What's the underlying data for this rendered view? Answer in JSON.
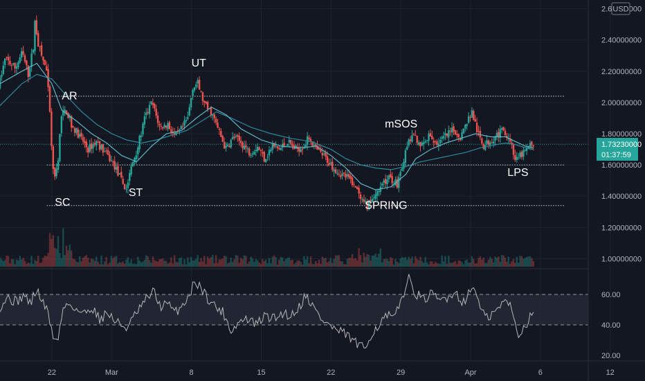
{
  "chart_data": {
    "type": "candlestick",
    "currency": "USD",
    "price_axis": {
      "ticks": [
        "2.60000000",
        "2.40000000",
        "2.20000000",
        "2.00000000",
        "1.80000000",
        "1.60000000",
        "1.40000000",
        "1.20000000",
        "1.00000000"
      ],
      "range": [
        0.98,
        2.62
      ],
      "last_price": "1.73230000",
      "countdown": "01:37:59"
    },
    "time_axis": {
      "ticks": [
        "22",
        "Mar",
        "8",
        "15",
        "22",
        "29",
        "Apr",
        "6",
        "12"
      ],
      "range_days": [
        -3.2,
        55.8
      ],
      "tick_days": [
        2,
        8,
        16,
        23,
        30,
        37,
        44,
        51,
        58
      ]
    },
    "reference_lines": [
      2.04,
      1.6,
      1.34
    ],
    "wyckoff_labels": [
      {
        "text": "AR",
        "day": 3.0,
        "price": 2.02
      },
      {
        "text": "SC",
        "day": 2.3,
        "price": 1.34
      },
      {
        "text": "ST",
        "day": 9.7,
        "price": 1.4
      },
      {
        "text": "UT",
        "day": 16.0,
        "price": 2.23
      },
      {
        "text": "mSOS",
        "day": 35.4,
        "price": 1.84
      },
      {
        "text": "SPRING",
        "day": 33.4,
        "price": 1.32
      },
      {
        "text": "LPS",
        "day": 47.7,
        "price": 1.53
      }
    ],
    "price_keypoints": [
      [
        -3.2,
        2.1
      ],
      [
        -2.5,
        2.28
      ],
      [
        -1.5,
        2.22
      ],
      [
        -0.8,
        2.32
      ],
      [
        -0.2,
        2.18
      ],
      [
        0.3,
        2.35
      ],
      [
        0.5,
        2.55
      ],
      [
        0.7,
        2.4
      ],
      [
        1.2,
        2.28
      ],
      [
        1.6,
        2.22
      ],
      [
        1.9,
        2.0
      ],
      [
        2.2,
        1.65
      ],
      [
        2.45,
        1.5
      ],
      [
        2.8,
        1.62
      ],
      [
        3.1,
        1.92
      ],
      [
        3.6,
        1.95
      ],
      [
        4.2,
        1.85
      ],
      [
        5.0,
        1.78
      ],
      [
        5.8,
        1.7
      ],
      [
        6.6,
        1.75
      ],
      [
        7.5,
        1.68
      ],
      [
        8.4,
        1.6
      ],
      [
        9.0,
        1.52
      ],
      [
        9.6,
        1.44
      ],
      [
        10.2,
        1.6
      ],
      [
        10.8,
        1.72
      ],
      [
        11.5,
        1.9
      ],
      [
        12.2,
        2.0
      ],
      [
        13.0,
        1.84
      ],
      [
        13.8,
        1.86
      ],
      [
        14.5,
        1.78
      ],
      [
        15.2,
        1.83
      ],
      [
        15.8,
        1.9
      ],
      [
        16.3,
        2.1
      ],
      [
        16.8,
        2.12
      ],
      [
        17.5,
        1.98
      ],
      [
        18.2,
        1.93
      ],
      [
        18.9,
        1.82
      ],
      [
        19.6,
        1.7
      ],
      [
        20.4,
        1.78
      ],
      [
        21.2,
        1.74
      ],
      [
        22.0,
        1.68
      ],
      [
        22.8,
        1.72
      ],
      [
        23.5,
        1.64
      ],
      [
        24.3,
        1.72
      ],
      [
        25.0,
        1.7
      ],
      [
        25.8,
        1.75
      ],
      [
        26.6,
        1.7
      ],
      [
        27.4,
        1.72
      ],
      [
        28.0,
        1.78
      ],
      [
        28.6,
        1.7
      ],
      [
        29.4,
        1.66
      ],
      [
        30.2,
        1.6
      ],
      [
        31.0,
        1.55
      ],
      [
        31.8,
        1.52
      ],
      [
        32.5,
        1.48
      ],
      [
        33.2,
        1.36
      ],
      [
        33.8,
        1.34
      ],
      [
        34.5,
        1.4
      ],
      [
        35.2,
        1.48
      ],
      [
        36.0,
        1.52
      ],
      [
        36.8,
        1.48
      ],
      [
        37.4,
        1.62
      ],
      [
        38.0,
        1.76
      ],
      [
        38.6,
        1.78
      ],
      [
        39.3,
        1.72
      ],
      [
        40.0,
        1.78
      ],
      [
        40.8,
        1.74
      ],
      [
        41.6,
        1.78
      ],
      [
        42.4,
        1.82
      ],
      [
        43.2,
        1.78
      ],
      [
        43.8,
        1.88
      ],
      [
        44.3,
        1.94
      ],
      [
        44.9,
        1.8
      ],
      [
        45.5,
        1.72
      ],
      [
        46.2,
        1.76
      ],
      [
        46.9,
        1.8
      ],
      [
        47.6,
        1.82
      ],
      [
        48.2,
        1.75
      ],
      [
        48.7,
        1.62
      ],
      [
        49.2,
        1.66
      ],
      [
        49.8,
        1.7
      ],
      [
        50.3,
        1.73
      ]
    ],
    "ma_fast": [
      [
        -3.2,
        2.12
      ],
      [
        -1.0,
        2.2
      ],
      [
        0.5,
        2.25
      ],
      [
        2.0,
        2.12
      ],
      [
        3.0,
        1.95
      ],
      [
        4.5,
        1.88
      ],
      [
        6.0,
        1.8
      ],
      [
        7.5,
        1.74
      ],
      [
        9.0,
        1.66
      ],
      [
        10.5,
        1.62
      ],
      [
        12.0,
        1.72
      ],
      [
        13.5,
        1.8
      ],
      [
        15.0,
        1.82
      ],
      [
        16.5,
        1.9
      ],
      [
        18.0,
        1.97
      ],
      [
        19.5,
        1.92
      ],
      [
        21.0,
        1.83
      ],
      [
        23.0,
        1.76
      ],
      [
        25.0,
        1.72
      ],
      [
        27.0,
        1.71
      ],
      [
        28.5,
        1.72
      ],
      [
        30.0,
        1.66
      ],
      [
        31.5,
        1.58
      ],
      [
        33.0,
        1.48
      ],
      [
        34.5,
        1.44
      ],
      [
        36.0,
        1.46
      ],
      [
        37.5,
        1.54
      ],
      [
        38.5,
        1.64
      ],
      [
        40.0,
        1.7
      ],
      [
        41.5,
        1.74
      ],
      [
        43.0,
        1.77
      ],
      [
        44.5,
        1.8
      ],
      [
        46.0,
        1.78
      ],
      [
        47.5,
        1.78
      ],
      [
        48.5,
        1.75
      ],
      [
        49.5,
        1.72
      ],
      [
        50.3,
        1.71
      ]
    ],
    "ma_slow": [
      [
        -3.2,
        1.98
      ],
      [
        -1.0,
        2.12
      ],
      [
        0.5,
        2.18
      ],
      [
        2.0,
        2.15
      ],
      [
        3.5,
        2.04
      ],
      [
        5.0,
        1.94
      ],
      [
        6.5,
        1.86
      ],
      [
        8.0,
        1.8
      ],
      [
        9.5,
        1.76
      ],
      [
        11.0,
        1.74
      ],
      [
        12.5,
        1.76
      ],
      [
        14.0,
        1.79
      ],
      [
        15.5,
        1.82
      ],
      [
        17.0,
        1.88
      ],
      [
        18.5,
        1.94
      ],
      [
        20.0,
        1.9
      ],
      [
        22.0,
        1.84
      ],
      [
        24.0,
        1.8
      ],
      [
        26.0,
        1.77
      ],
      [
        28.0,
        1.75
      ],
      [
        30.0,
        1.7
      ],
      [
        31.5,
        1.64
      ],
      [
        33.0,
        1.6
      ],
      [
        34.5,
        1.58
      ],
      [
        36.0,
        1.57
      ],
      [
        37.5,
        1.59
      ],
      [
        39.0,
        1.62
      ],
      [
        40.5,
        1.64
      ],
      [
        42.0,
        1.66
      ],
      [
        43.5,
        1.68
      ],
      [
        45.0,
        1.71
      ],
      [
        46.5,
        1.73
      ],
      [
        47.5,
        1.74
      ],
      [
        48.5,
        1.73
      ],
      [
        49.5,
        1.71
      ],
      [
        50.3,
        1.7
      ]
    ],
    "rsi": {
      "ticks": [
        "60.00",
        "40.00",
        "20.00"
      ],
      "range": [
        15,
        76
      ],
      "bands": [
        60,
        40
      ],
      "keypoints": [
        [
          -3.2,
          52
        ],
        [
          -2.5,
          58
        ],
        [
          -1.5,
          55
        ],
        [
          -0.8,
          60
        ],
        [
          -0.2,
          54
        ],
        [
          0.5,
          63
        ],
        [
          1.0,
          56
        ],
        [
          1.6,
          48
        ],
        [
          2.1,
          34
        ],
        [
          2.5,
          28
        ],
        [
          2.8,
          38
        ],
        [
          3.2,
          52
        ],
        [
          3.8,
          54
        ],
        [
          4.5,
          50
        ],
        [
          5.2,
          47
        ],
        [
          6.0,
          52
        ],
        [
          6.8,
          44
        ],
        [
          7.6,
          48
        ],
        [
          8.4,
          42
        ],
        [
          9.0,
          40
        ],
        [
          9.6,
          38
        ],
        [
          10.3,
          46
        ],
        [
          11.0,
          52
        ],
        [
          11.6,
          58
        ],
        [
          12.2,
          62
        ],
        [
          12.9,
          52
        ],
        [
          13.6,
          54
        ],
        [
          14.3,
          48
        ],
        [
          15.0,
          52
        ],
        [
          15.8,
          60
        ],
        [
          16.4,
          69
        ],
        [
          17.0,
          64
        ],
        [
          17.6,
          58
        ],
        [
          18.4,
          52
        ],
        [
          19.2,
          48
        ],
        [
          20.0,
          36
        ],
        [
          20.8,
          42
        ],
        [
          21.6,
          44
        ],
        [
          22.5,
          40
        ],
        [
          23.4,
          46
        ],
        [
          24.3,
          44
        ],
        [
          25.2,
          48
        ],
        [
          26.0,
          46
        ],
        [
          26.8,
          52
        ],
        [
          27.5,
          60
        ],
        [
          28.2,
          52
        ],
        [
          29.0,
          44
        ],
        [
          29.8,
          40
        ],
        [
          30.6,
          36
        ],
        [
          31.4,
          34
        ],
        [
          32.2,
          30
        ],
        [
          32.8,
          26
        ],
        [
          33.4,
          24
        ],
        [
          34.0,
          34
        ],
        [
          34.8,
          40
        ],
        [
          35.6,
          46
        ],
        [
          36.4,
          44
        ],
        [
          37.2,
          60
        ],
        [
          37.8,
          70
        ],
        [
          38.4,
          62
        ],
        [
          39.2,
          56
        ],
        [
          40.0,
          60
        ],
        [
          40.8,
          56
        ],
        [
          41.6,
          58
        ],
        [
          42.4,
          62
        ],
        [
          43.2,
          55
        ],
        [
          43.8,
          60
        ],
        [
          44.4,
          66
        ],
        [
          45.0,
          50
        ],
        [
          45.6,
          44
        ],
        [
          46.4,
          48
        ],
        [
          47.2,
          54
        ],
        [
          47.8,
          56
        ],
        [
          48.4,
          42
        ],
        [
          48.8,
          34
        ],
        [
          49.4,
          38
        ],
        [
          49.9,
          46
        ],
        [
          50.3,
          50
        ]
      ]
    },
    "colors": {
      "background": "#131722",
      "up": "#26a69a",
      "down": "#ef5350",
      "ma_fast": "#5fb4c4",
      "ma_slow": "#2e8a9e",
      "rsi_line": "#b8b8b8",
      "rsi_band": "#2a2e39",
      "text": "#b2b5be",
      "label": "#ffffff",
      "last_price_tag": "#26a69a"
    }
  }
}
